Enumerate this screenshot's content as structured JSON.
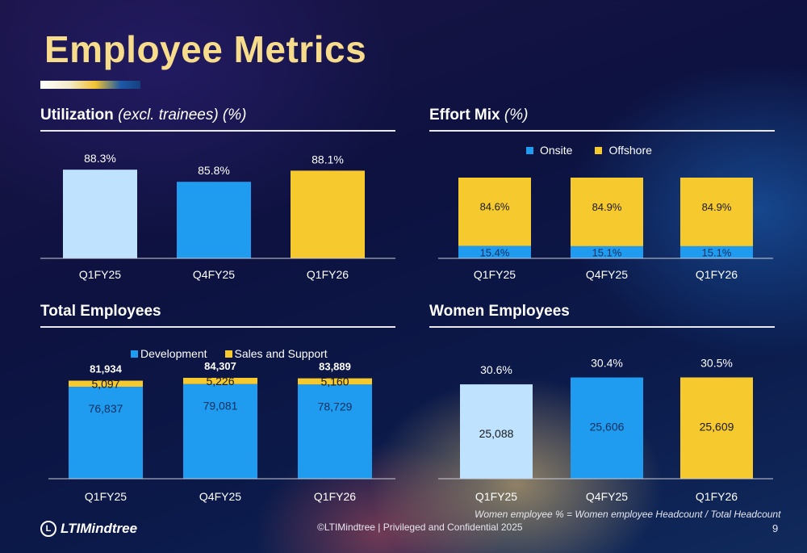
{
  "page": {
    "title": "Employee Metrics",
    "note": "Women employee % = Women employee Headcount / Total Headcount",
    "footer": "©LTIMindtree | Privileged and Confidential 2025",
    "page_number": "9",
    "logo_text": "LTIMindtree",
    "logo_icon": "lt-logo-icon"
  },
  "colors": {
    "light_blue": "#bfe2ff",
    "blue": "#1f9bf0",
    "yellow": "#f6c92f",
    "title_gold": "#f7dc8c"
  },
  "sections": {
    "utilization": {
      "title": "Utilization",
      "subtitle": "(excl. trainees) (%)"
    },
    "effort": {
      "title": "Effort Mix",
      "subtitle": "(%)"
    },
    "total": {
      "title": "Total Employees"
    },
    "women": {
      "title": "Women Employees"
    }
  },
  "chart_data": [
    {
      "id": "utilization",
      "type": "bar",
      "categories": [
        "Q1FY25",
        "Q4FY25",
        "Q1FY26"
      ],
      "values": [
        88.3,
        85.8,
        88.1
      ],
      "data_labels": [
        "88.3%",
        "85.8%",
        "88.1%"
      ],
      "bar_colors": [
        "#bfe2ff",
        "#1f9bf0",
        "#f6c92f"
      ],
      "ylim": [
        70,
        90
      ]
    },
    {
      "id": "effort",
      "type": "bar",
      "stacked": true,
      "categories": [
        "Q1FY25",
        "Q4FY25",
        "Q1FY26"
      ],
      "legend": "top",
      "series": [
        {
          "name": "Onsite",
          "values": [
            15.4,
            15.1,
            15.1
          ],
          "labels": [
            "15.4%",
            "15.1%",
            "15.1%"
          ],
          "color": "#1f9bf0"
        },
        {
          "name": "Offshore",
          "values": [
            84.6,
            84.9,
            84.9
          ],
          "labels": [
            "84.6%",
            "84.9%",
            "84.9%"
          ],
          "color": "#f6c92f"
        }
      ],
      "ylim": [
        0,
        100
      ]
    },
    {
      "id": "total",
      "type": "bar",
      "stacked": true,
      "categories": [
        "Q1FY25",
        "Q4FY25",
        "Q1FY26"
      ],
      "legend": "top",
      "totals": [
        "81,934",
        "84,307",
        "83,889"
      ],
      "series": [
        {
          "name": "Development",
          "values": [
            76837,
            79081,
            78729
          ],
          "labels": [
            "76,837",
            "79,081",
            "78,729"
          ],
          "color": "#1f9bf0"
        },
        {
          "name": "Sales and Support",
          "values": [
            5097,
            5226,
            5160
          ],
          "labels": [
            "5,097",
            "5,226",
            "5,160"
          ],
          "color": "#f6c92f"
        }
      ],
      "ylim": [
        0,
        84307
      ]
    },
    {
      "id": "women",
      "type": "bar",
      "categories": [
        "Q1FY25",
        "Q4FY25",
        "Q1FY26"
      ],
      "values": [
        25088,
        25606,
        25609
      ],
      "inner_labels": [
        "25,088",
        "25,606",
        "25,609"
      ],
      "top_labels": [
        "30.6%",
        "30.4%",
        "30.5%"
      ],
      "bar_colors": [
        "#bfe2ff",
        "#1f9bf0",
        "#f6c92f"
      ],
      "ylim": [
        18000,
        25700
      ]
    }
  ]
}
